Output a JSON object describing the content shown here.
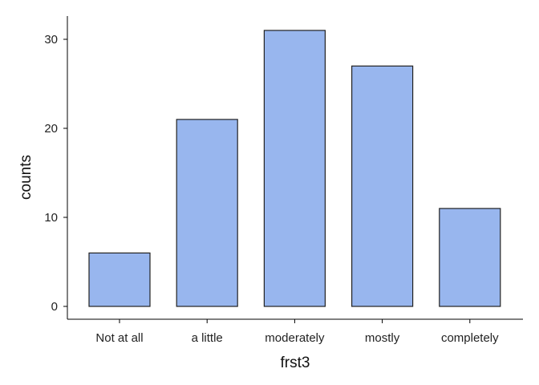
{
  "chart_data": {
    "type": "bar",
    "title": "",
    "xlabel": "frst3",
    "ylabel": "counts",
    "categories": [
      "Not at all",
      "a little",
      "moderately",
      "mostly",
      "completely"
    ],
    "values": [
      6,
      21,
      31,
      27,
      11
    ],
    "yticks": [
      0,
      10,
      20,
      30
    ],
    "ylim": [
      0,
      31
    ],
    "grid": false,
    "legend": "none",
    "colors": {
      "bar_fill": "#98b6ee",
      "bar_stroke": "#222222",
      "axis": "#000000"
    }
  }
}
